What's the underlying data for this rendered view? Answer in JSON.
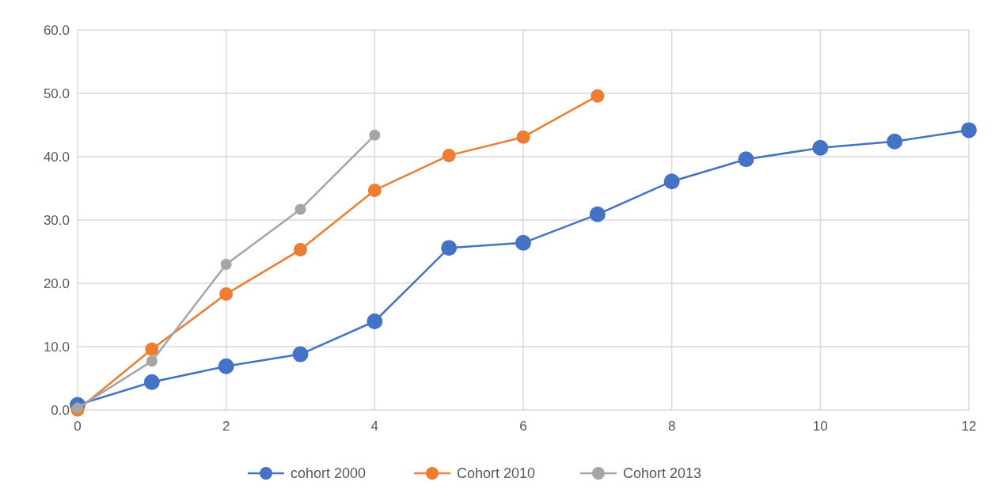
{
  "chart_data": {
    "type": "line",
    "x": [
      0,
      1,
      2,
      3,
      4,
      5,
      6,
      7,
      8,
      9,
      10,
      11,
      12
    ],
    "xlim": [
      0,
      12
    ],
    "xticks": [
      0,
      2,
      4,
      6,
      8,
      10,
      12
    ],
    "ylim": [
      0,
      60
    ],
    "yticks": [
      {
        "value": 0,
        "label": "0.0"
      },
      {
        "value": 10,
        "label": "10.0"
      },
      {
        "value": 20,
        "label": "20.0"
      },
      {
        "value": 30,
        "label": "30.0"
      },
      {
        "value": 40,
        "label": "40.0"
      },
      {
        "value": 50,
        "label": "50.0"
      },
      {
        "value": 60,
        "label": "60.0"
      }
    ],
    "grid": true,
    "legend": "bottom",
    "marker": "circle",
    "line_style": "solid",
    "series": [
      {
        "name": "cohort 2000",
        "color": "#4472c4",
        "values": [
          0.8,
          4.4,
          6.9,
          8.8,
          14.0,
          25.6,
          26.4,
          30.9,
          36.1,
          39.6,
          41.4,
          42.4,
          44.2
        ]
      },
      {
        "name": "Cohort 2010",
        "color": "#ed7d31",
        "values": [
          0,
          9.6,
          18.3,
          25.3,
          34.7,
          40.2,
          43.1,
          49.6,
          null,
          null,
          null,
          null,
          null
        ]
      },
      {
        "name": "Cohort 2013",
        "color": "#a5a5a5",
        "values": [
          0.3,
          7.7,
          23.0,
          31.7,
          43.4,
          null,
          null,
          null,
          null,
          null,
          null,
          null,
          null
        ]
      }
    ]
  }
}
